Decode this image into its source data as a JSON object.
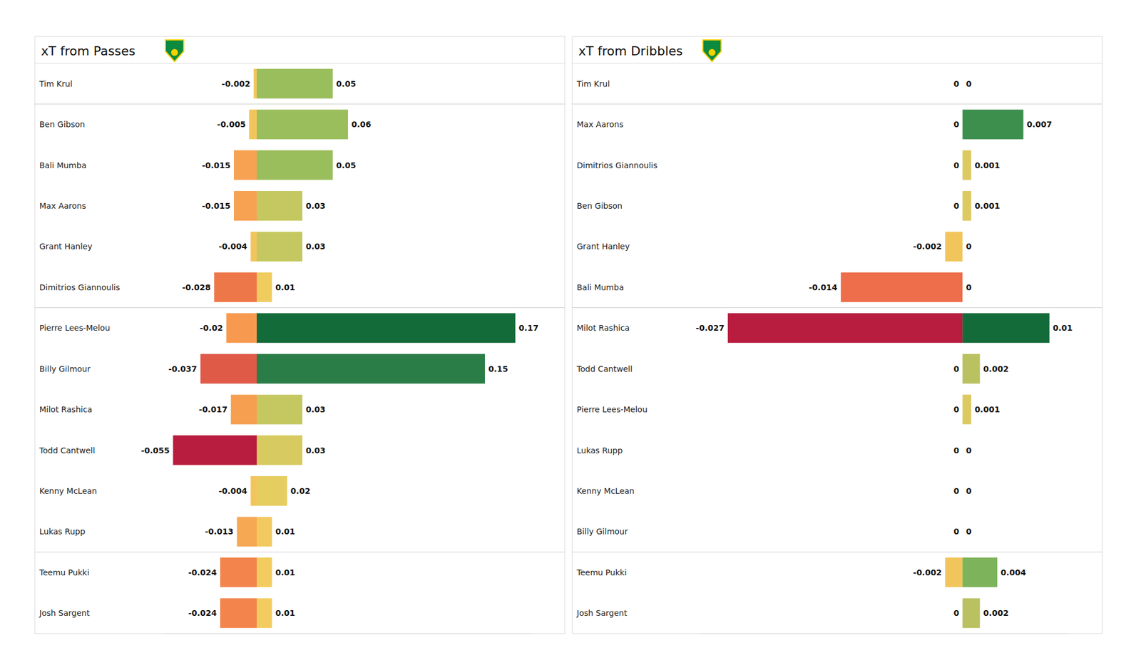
{
  "chart_data": [
    {
      "type": "bar",
      "title": "xT from Passes",
      "orientation": "horizontal",
      "data_labels": true,
      "tick_labels": "y",
      "grid": false,
      "xlim": [
        -0.06,
        0.18
      ],
      "categories": [
        "Tim Krul",
        "Ben Gibson",
        "Bali Mumba",
        "Max Aarons",
        "Grant Hanley",
        "Dimitrios Giannoulis",
        "Pierre Lees-Melou",
        "Billy Gilmour",
        "Milot Rashica",
        "Todd Cantwell",
        "Kenny McLean",
        "Lukas Rupp",
        "Teemu Pukki",
        "Josh Sargent"
      ],
      "series": [
        {
          "values": [
            -0.002,
            -0.005,
            -0.015,
            -0.015,
            -0.004,
            -0.028,
            -0.02,
            -0.037,
            -0.017,
            -0.055,
            -0.004,
            -0.013,
            -0.024,
            -0.024
          ],
          "colors": [
            "#f2c55c",
            "#f2c55c",
            "#f7a152",
            "#f7a152",
            "#f2c55c",
            "#ee774a",
            "#f79a50",
            "#e05a48",
            "#f79f50",
            "#b81c3e",
            "#f2c55c",
            "#f7a852",
            "#f2844c",
            "#f2844c"
          ]
        },
        {
          "values": [
            0.05,
            0.06,
            0.05,
            0.03,
            0.03,
            0.01,
            0.17,
            0.15,
            0.03,
            0.03,
            0.02,
            0.01,
            0.01,
            0.01
          ],
          "colors": [
            "#9bbe5c",
            "#9bbe5c",
            "#9bbe5c",
            "#c5c860",
            "#c5c860",
            "#f0cb5e",
            "#146b3a",
            "#2b7d48",
            "#c5c860",
            "#d6ca60",
            "#e6cd62",
            "#f2c860",
            "#f2cc5e",
            "#f2cc5e"
          ]
        }
      ]
    },
    {
      "type": "bar",
      "title": "xT from Dribbles",
      "orientation": "horizontal",
      "data_labels": true,
      "tick_labels": "y",
      "grid": false,
      "xlim": [
        -0.03,
        0.012
      ],
      "categories": [
        "Tim Krul",
        "Max Aarons",
        "Dimitrios Giannoulis",
        "Ben Gibson",
        "Grant Hanley",
        "Bali Mumba",
        "Milot Rashica",
        "Todd Cantwell",
        "Pierre Lees-Melou",
        "Lukas Rupp",
        "Kenny McLean",
        "Billy Gilmour",
        "Teemu Pukki",
        "Josh Sargent"
      ],
      "series": [
        {
          "values": [
            0,
            0,
            0,
            0,
            -0.002,
            -0.014,
            -0.027,
            0,
            0,
            0,
            0,
            0,
            -0.002,
            0
          ],
          "colors": [
            "#e6cd62",
            "#e6cd62",
            "#e6cd62",
            "#e6cd62",
            "#f2c55c",
            "#ee6d4a",
            "#b81c3e",
            "#e6cd62",
            "#e6cd62",
            "#e6cd62",
            "#e6cd62",
            "#e6cd62",
            "#f2c55c",
            "#e6cd62"
          ]
        },
        {
          "values": [
            0,
            0.007,
            0.001,
            0.001,
            0,
            0,
            0.01,
            0.002,
            0.001,
            0,
            0,
            0,
            0.004,
            0.002
          ],
          "colors": [
            "#e6cd62",
            "#3d8f4e",
            "#dcc962",
            "#dcc962",
            "#e6cd62",
            "#e6cd62",
            "#146b3a",
            "#b9c160",
            "#dcc962",
            "#e6cd62",
            "#e6cd62",
            "#e6cd62",
            "#7db35a",
            "#b9c160"
          ]
        }
      ]
    }
  ]
}
